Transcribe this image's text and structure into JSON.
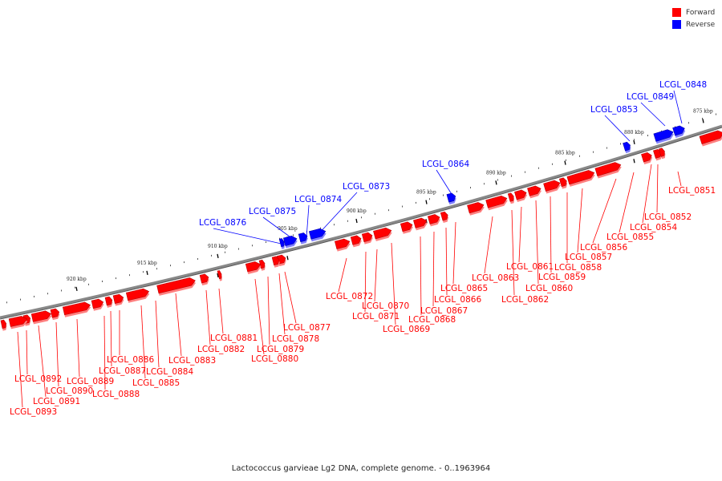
{
  "caption": "Lactococcus garvieae Lg2 DNA, complete genome. - 0..1963964",
  "legend": [
    {
      "label": "Forward",
      "color": "#ff0000"
    },
    {
      "label": "Reverse",
      "color": "#0000ff"
    }
  ],
  "colors": {
    "forward": "#ff0000",
    "reverse": "#0000ff",
    "backbone": "#888888"
  },
  "ticks": [
    "875 kbp",
    "880 kbp",
    "885 kbp",
    "890 kbp",
    "895 kbp",
    "900 kbp",
    "905 kbp",
    "910 kbp",
    "915 kbp",
    "920 kbp"
  ],
  "forward_genes": [
    "LCGL_0851",
    "LCGL_0852",
    "LCGL_0854",
    "LCGL_0855",
    "LCGL_0856",
    "LCGL_0857",
    "LCGL_0858",
    "LCGL_0859",
    "LCGL_0860",
    "LCGL_0861",
    "LCGL_0862",
    "LCGL_0863",
    "LCGL_0865",
    "LCGL_0866",
    "LCGL_0867",
    "LCGL_0868",
    "LCGL_0869",
    "LCGL_0870",
    "LCGL_0871",
    "LCGL_0872",
    "LCGL_0877",
    "LCGL_0878",
    "LCGL_0879",
    "LCGL_0880",
    "LCGL_0881",
    "LCGL_0882",
    "LCGL_0883",
    "LCGL_0884",
    "LCGL_0885",
    "LCGL_0886",
    "LCGL_0887",
    "LCGL_0888",
    "LCGL_0889",
    "LCGL_0890",
    "LCGL_0891",
    "LCGL_0892",
    "LCGL_0893"
  ],
  "reverse_genes": [
    "LCGL_0848",
    "LCGL_0849",
    "LCGL_0853",
    "LCGL_0864",
    "LCGL_0873",
    "LCGL_0874",
    "LCGL_0875",
    "LCGL_0876"
  ]
}
